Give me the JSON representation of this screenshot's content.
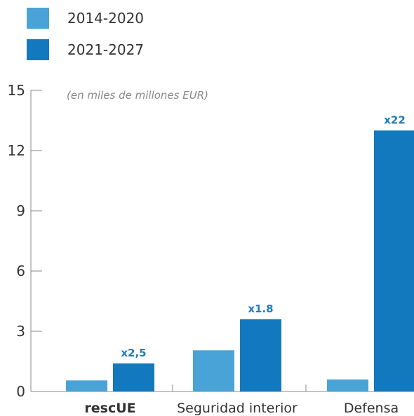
{
  "chart_data": {
    "type": "bar",
    "note": "(en miles de millones EUR)",
    "categories": [
      "rescUE",
      "Seguridad interior",
      "Defensa"
    ],
    "category_bold": [
      true,
      false,
      false
    ],
    "series": [
      {
        "name": "2014-2020",
        "color": "#4aa3d6",
        "values": [
          0.55,
          2.05,
          0.6
        ]
      },
      {
        "name": "2021-2027",
        "color": "#1279bf",
        "values": [
          1.4,
          3.6,
          13.0
        ]
      }
    ],
    "multipliers": [
      "x2,5",
      "x1.8",
      "x22"
    ],
    "ylim": [
      0,
      15
    ],
    "yticks": [
      0,
      3,
      6,
      9,
      12,
      15
    ],
    "legend_position": "top-left"
  }
}
